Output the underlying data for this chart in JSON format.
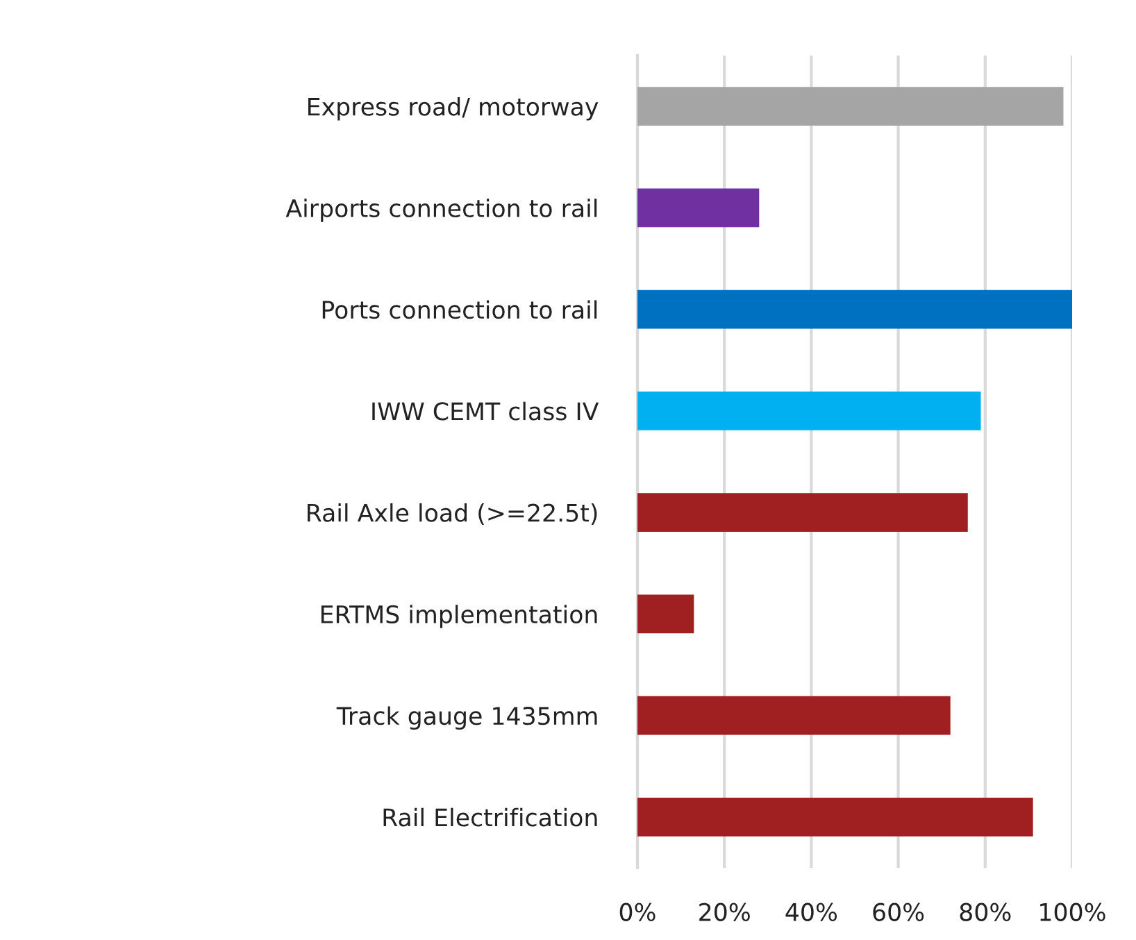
{
  "chart_data": {
    "type": "bar",
    "orientation": "horizontal",
    "categories": [
      "Express road/ motorway",
      "Airports connection to rail",
      "Ports connection to rail",
      "IWW CEMT class IV",
      "Rail Axle load (>=22.5t)",
      "ERTMS implementation",
      "Track gauge 1435mm",
      "Rail Electrification"
    ],
    "values": [
      98,
      28,
      100,
      79,
      76,
      13,
      72,
      91
    ],
    "colors": [
      "#a5a5a5",
      "#7030a0",
      "#0070c0",
      "#00b0f0",
      "#a02022",
      "#a02022",
      "#a02022",
      "#a02022"
    ],
    "xlim": [
      0,
      100
    ],
    "xticks": [
      {
        "value": 0,
        "label": "0%"
      },
      {
        "value": 20,
        "label": "20%"
      },
      {
        "value": 40,
        "label": "40%"
      },
      {
        "value": 60,
        "label": "60%"
      },
      {
        "value": 80,
        "label": "80%"
      },
      {
        "value": 100,
        "label": "100%"
      }
    ],
    "grid": "x"
  }
}
